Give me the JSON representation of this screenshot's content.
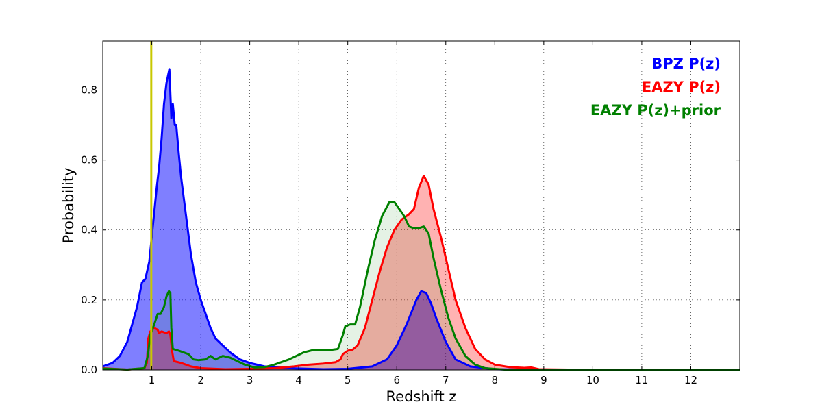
{
  "chart_data": {
    "type": "area",
    "title": "",
    "xlabel": "Redshift z",
    "ylabel": "Probability",
    "xlim": [
      0,
      13
    ],
    "ylim": [
      0,
      0.94
    ],
    "grid": true,
    "legend_position": "top-right",
    "x_ticks": [
      1,
      2,
      3,
      4,
      5,
      6,
      7,
      8,
      9,
      10,
      11,
      12
    ],
    "x_tick_labels": [
      "1",
      "2",
      "3",
      "4",
      "5",
      "6",
      "7",
      "8",
      "9",
      "10",
      "11",
      "12"
    ],
    "y_ticks": [
      0.0,
      0.2,
      0.4,
      0.6,
      0.8
    ],
    "y_tick_labels": [
      "0.0",
      "0.2",
      "0.4",
      "0.6",
      "0.8"
    ],
    "vertical_line": {
      "x": 0.99,
      "color": "#c8c800"
    },
    "series": [
      {
        "name": "BPZ P(z)",
        "color": "#0000ff",
        "fill": "#0000ff",
        "fill_opacity": 0.5,
        "points": [
          [
            0,
            0.01
          ],
          [
            0.2,
            0.02
          ],
          [
            0.35,
            0.04
          ],
          [
            0.5,
            0.08
          ],
          [
            0.6,
            0.13
          ],
          [
            0.7,
            0.18
          ],
          [
            0.8,
            0.25
          ],
          [
            0.87,
            0.26
          ],
          [
            0.95,
            0.31
          ],
          [
            1.0,
            0.38
          ],
          [
            1.05,
            0.45
          ],
          [
            1.1,
            0.52
          ],
          [
            1.15,
            0.58
          ],
          [
            1.2,
            0.66
          ],
          [
            1.25,
            0.76
          ],
          [
            1.3,
            0.82
          ],
          [
            1.36,
            0.86
          ],
          [
            1.4,
            0.72
          ],
          [
            1.43,
            0.76
          ],
          [
            1.47,
            0.7
          ],
          [
            1.5,
            0.7
          ],
          [
            1.55,
            0.62
          ],
          [
            1.6,
            0.55
          ],
          [
            1.7,
            0.44
          ],
          [
            1.8,
            0.33
          ],
          [
            1.9,
            0.25
          ],
          [
            2.0,
            0.2
          ],
          [
            2.1,
            0.16
          ],
          [
            2.2,
            0.12
          ],
          [
            2.3,
            0.09
          ],
          [
            2.45,
            0.07
          ],
          [
            2.6,
            0.05
          ],
          [
            2.8,
            0.03
          ],
          [
            3.0,
            0.02
          ],
          [
            3.3,
            0.01
          ],
          [
            3.8,
            0.005
          ],
          [
            4.5,
            0.002
          ],
          [
            5.0,
            0.003
          ],
          [
            5.5,
            0.01
          ],
          [
            5.8,
            0.03
          ],
          [
            6.0,
            0.07
          ],
          [
            6.2,
            0.13
          ],
          [
            6.4,
            0.2
          ],
          [
            6.5,
            0.225
          ],
          [
            6.6,
            0.22
          ],
          [
            6.7,
            0.19
          ],
          [
            6.8,
            0.15
          ],
          [
            7.0,
            0.08
          ],
          [
            7.2,
            0.03
          ],
          [
            7.5,
            0.01
          ],
          [
            8.0,
            0.002
          ],
          [
            9.0,
            0.0
          ],
          [
            13,
            0.0
          ]
        ]
      },
      {
        "name": "EAZY P(z)",
        "color": "#ff0000",
        "fill": "#ff0000",
        "fill_opacity": 0.3,
        "points": [
          [
            0,
            0.005
          ],
          [
            0.5,
            0.001
          ],
          [
            0.85,
            0.005
          ],
          [
            0.9,
            0.02
          ],
          [
            0.93,
            0.09
          ],
          [
            0.97,
            0.11
          ],
          [
            1.05,
            0.12
          ],
          [
            1.12,
            0.115
          ],
          [
            1.15,
            0.105
          ],
          [
            1.2,
            0.11
          ],
          [
            1.3,
            0.105
          ],
          [
            1.35,
            0.11
          ],
          [
            1.38,
            0.1
          ],
          [
            1.42,
            0.05
          ],
          [
            1.45,
            0.025
          ],
          [
            1.6,
            0.02
          ],
          [
            1.8,
            0.01
          ],
          [
            2.0,
            0.005
          ],
          [
            2.5,
            0.002
          ],
          [
            3.0,
            0.003
          ],
          [
            3.5,
            0.005
          ],
          [
            3.9,
            0.01
          ],
          [
            4.2,
            0.015
          ],
          [
            4.5,
            0.018
          ],
          [
            4.75,
            0.022
          ],
          [
            4.85,
            0.03
          ],
          [
            4.9,
            0.045
          ],
          [
            5.0,
            0.055
          ],
          [
            5.1,
            0.058
          ],
          [
            5.2,
            0.07
          ],
          [
            5.35,
            0.12
          ],
          [
            5.5,
            0.2
          ],
          [
            5.65,
            0.28
          ],
          [
            5.8,
            0.35
          ],
          [
            5.95,
            0.4
          ],
          [
            6.1,
            0.43
          ],
          [
            6.25,
            0.445
          ],
          [
            6.35,
            0.46
          ],
          [
            6.45,
            0.52
          ],
          [
            6.55,
            0.555
          ],
          [
            6.65,
            0.53
          ],
          [
            6.75,
            0.46
          ],
          [
            6.9,
            0.38
          ],
          [
            7.05,
            0.29
          ],
          [
            7.2,
            0.2
          ],
          [
            7.4,
            0.12
          ],
          [
            7.6,
            0.06
          ],
          [
            7.8,
            0.03
          ],
          [
            8.0,
            0.015
          ],
          [
            8.3,
            0.008
          ],
          [
            8.6,
            0.006
          ],
          [
            8.75,
            0.007
          ],
          [
            8.9,
            0.002
          ],
          [
            9.5,
            0.001
          ],
          [
            13,
            0.0
          ]
        ]
      },
      {
        "name": "EAZY P(z)+prior",
        "color": "#008000",
        "fill": "#008000",
        "fill_opacity": 0.1,
        "points": [
          [
            0,
            0.004
          ],
          [
            0.5,
            0.001
          ],
          [
            0.85,
            0.005
          ],
          [
            0.92,
            0.04
          ],
          [
            0.97,
            0.1
          ],
          [
            1.05,
            0.13
          ],
          [
            1.12,
            0.16
          ],
          [
            1.18,
            0.16
          ],
          [
            1.25,
            0.18
          ],
          [
            1.3,
            0.21
          ],
          [
            1.35,
            0.225
          ],
          [
            1.38,
            0.22
          ],
          [
            1.4,
            0.12
          ],
          [
            1.43,
            0.06
          ],
          [
            1.55,
            0.055
          ],
          [
            1.65,
            0.05
          ],
          [
            1.75,
            0.045
          ],
          [
            1.85,
            0.03
          ],
          [
            1.95,
            0.028
          ],
          [
            2.1,
            0.03
          ],
          [
            2.2,
            0.04
          ],
          [
            2.3,
            0.03
          ],
          [
            2.45,
            0.04
          ],
          [
            2.6,
            0.035
          ],
          [
            2.75,
            0.025
          ],
          [
            2.9,
            0.015
          ],
          [
            3.1,
            0.007
          ],
          [
            3.3,
            0.008
          ],
          [
            3.5,
            0.015
          ],
          [
            3.8,
            0.03
          ],
          [
            4.1,
            0.05
          ],
          [
            4.3,
            0.057
          ],
          [
            4.6,
            0.056
          ],
          [
            4.8,
            0.06
          ],
          [
            4.9,
            0.1
          ],
          [
            4.95,
            0.125
          ],
          [
            5.05,
            0.13
          ],
          [
            5.15,
            0.13
          ],
          [
            5.25,
            0.18
          ],
          [
            5.4,
            0.28
          ],
          [
            5.55,
            0.37
          ],
          [
            5.7,
            0.44
          ],
          [
            5.85,
            0.48
          ],
          [
            5.95,
            0.48
          ],
          [
            6.05,
            0.46
          ],
          [
            6.15,
            0.44
          ],
          [
            6.25,
            0.41
          ],
          [
            6.35,
            0.405
          ],
          [
            6.45,
            0.405
          ],
          [
            6.55,
            0.41
          ],
          [
            6.65,
            0.39
          ],
          [
            6.75,
            0.32
          ],
          [
            6.9,
            0.23
          ],
          [
            7.05,
            0.15
          ],
          [
            7.2,
            0.09
          ],
          [
            7.4,
            0.04
          ],
          [
            7.6,
            0.015
          ],
          [
            7.8,
            0.005
          ],
          [
            8.2,
            0.001
          ],
          [
            13,
            0.0
          ]
        ]
      }
    ]
  }
}
